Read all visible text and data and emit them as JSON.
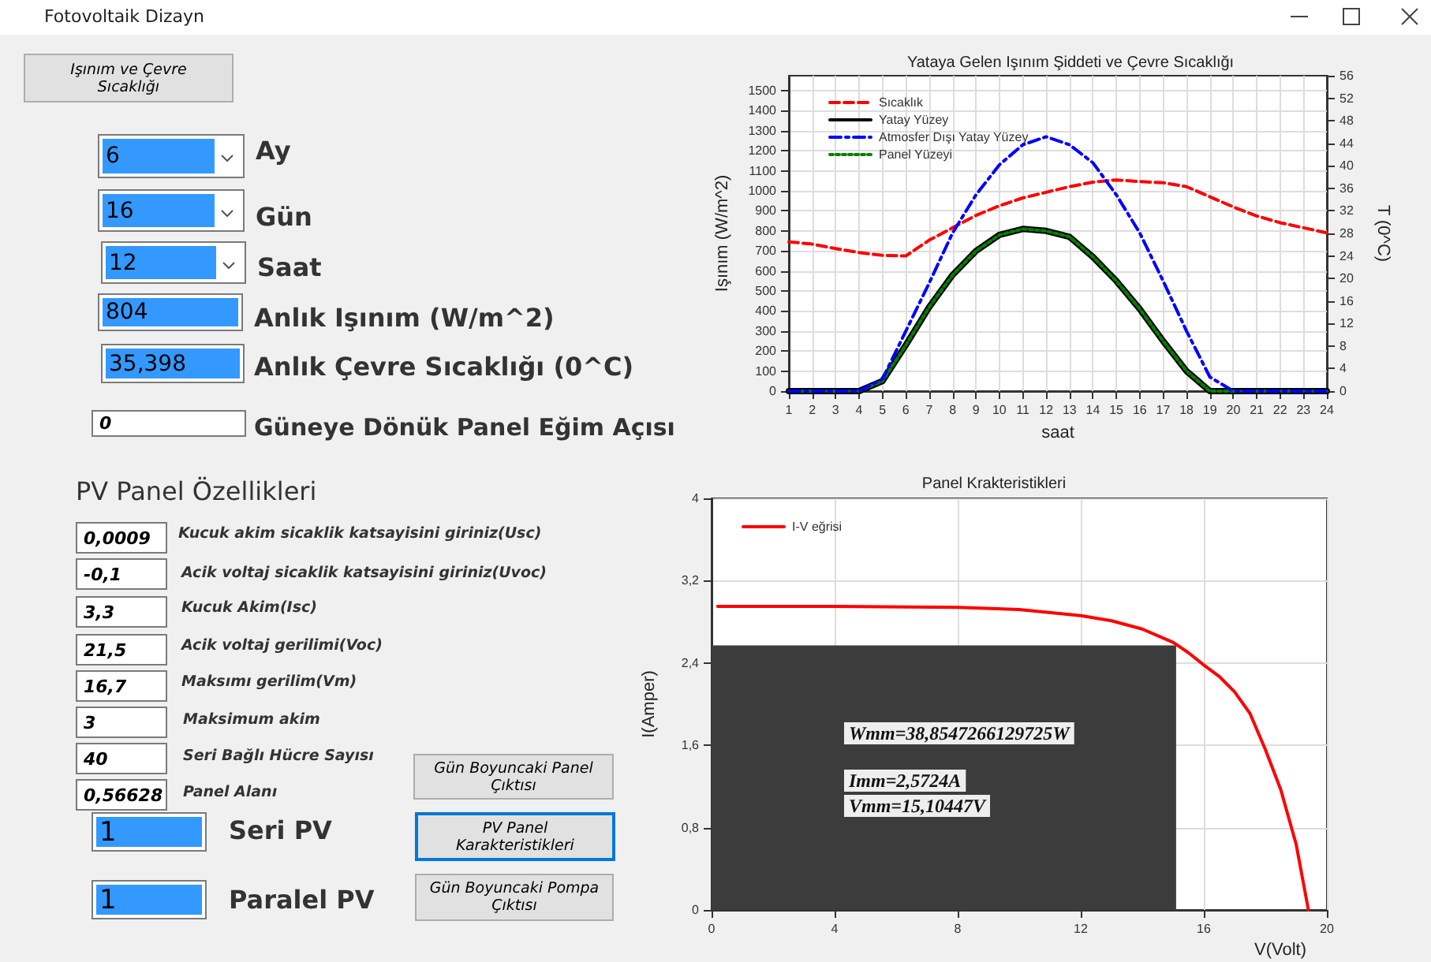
{
  "chart_data": [
    {
      "type": "other",
      "title": "Fotovoltaik Dizayn",
      "annotations": [
        "Işınım ve Çevre Sıcaklığı",
        "6",
        "Ay",
        "16",
        "Gün",
        "12",
        "Saat",
        "804",
        "Anlık Işınım (W/m^2)",
        "35,398",
        "Anlık Çevre Sıcaklığı (0^C)",
        "0",
        "Güneye Dönük Panel Eğim Açısı",
        "PV Panel Özellikleri",
        "0,0009",
        "Kucuk akim sicaklik katsayisini giriniz(Usc)",
        "-0,1",
        "Acik voltaj sicaklik katsayisini giriniz(Uvoc)",
        "3,3",
        "Kucuk Akim(Isc)",
        "21,5",
        "Acik voltaj gerilimi(Voc)",
        "16,7",
        "Maksımı gerilim(Vm)",
        "3",
        "Maksimum akim",
        "40",
        "Seri Bağlı Hücre Sayısı",
        "0,56628",
        "Panel Alanı",
        "1",
        "Seri PV",
        "1",
        "Paralel PV",
        "Gün Boyuncaki Panel Çıktısı",
        "PV Panel Karakteristikleri",
        "Gün Boyuncaki Pompa Çıktısı"
      ]
    },
    {
      "type": "line",
      "title": "Yataya Gelen Işınım Şiddeti ve Çevre Sıcaklığı",
      "xlabel": "saat",
      "ylabel": "Işınım (W/m^2)",
      "y2label": "T (0^C)",
      "x": [
        1,
        2,
        3,
        4,
        5,
        6,
        7,
        8,
        9,
        10,
        11,
        12,
        13,
        14,
        15,
        16,
        17,
        18,
        19,
        20,
        21,
        22,
        23,
        24
      ],
      "xlim": [
        1,
        24
      ],
      "xticks": [
        1,
        2,
        3,
        4,
        5,
        6,
        7,
        8,
        9,
        10,
        11,
        12,
        13,
        14,
        15,
        16,
        17,
        18,
        19,
        20,
        21,
        22,
        23,
        24
      ],
      "ylim": [
        0,
        1575
      ],
      "yticks": [
        0,
        100,
        200,
        300,
        400,
        500,
        600,
        700,
        800,
        900,
        1000,
        1100,
        1200,
        1300,
        1400,
        1500
      ],
      "y2lim": [
        0,
        56
      ],
      "y2ticks": [
        0,
        4,
        8,
        12,
        16,
        20,
        24,
        28,
        32,
        36,
        40,
        44,
        48,
        52,
        56
      ],
      "grid": true,
      "legend": "top left",
      "marker": "none",
      "series": [
        {
          "name": "Sıcaklık",
          "color": "#ff0000",
          "line_style": "dashed",
          "axis": "y2",
          "values": [
            26.5,
            26.1,
            25.3,
            24.6,
            24.1,
            24.0,
            26.8,
            29.0,
            31.2,
            32.9,
            34.3,
            35.3,
            36.3,
            37.1,
            37.5,
            37.2,
            37.0,
            36.3,
            34.5,
            32.7,
            31.1,
            29.9,
            29.0,
            28.1
          ]
        },
        {
          "name": "Yatay Yüzey",
          "color": "#000000",
          "line_style": "solid",
          "values": [
            0,
            0,
            0,
            0,
            50,
            230,
            420,
            580,
            700,
            780,
            810,
            800,
            770,
            670,
            550,
            410,
            250,
            100,
            0,
            0,
            0,
            0,
            0,
            0
          ]
        },
        {
          "name": "Atmosfer Dışı Yatay Yüzey",
          "color": "#0000ff",
          "line_style": "dashdot",
          "values": [
            0,
            0,
            0,
            0,
            60,
            300,
            540,
            790,
            980,
            1130,
            1230,
            1270,
            1230,
            1140,
            980,
            790,
            550,
            300,
            70,
            0,
            0,
            0,
            0,
            0
          ]
        },
        {
          "name": "Panel Yüzeyi",
          "color": "#008000",
          "line_style": "dotted",
          "values": [
            0,
            0,
            0,
            0,
            50,
            230,
            420,
            580,
            700,
            780,
            810,
            800,
            770,
            670,
            550,
            410,
            250,
            100,
            0,
            0,
            0,
            0,
            0,
            0
          ]
        }
      ]
    },
    {
      "type": "line",
      "title": "Panel Krakteristikleri",
      "xlabel": "V(Volt)",
      "ylabel": "I(Amper)",
      "xlim": [
        0,
        20
      ],
      "xticks": [
        0,
        4,
        8,
        12,
        16,
        20
      ],
      "ylim": [
        0,
        4
      ],
      "yticks": [
        0,
        {
          "value": 0.8,
          "label": "0,8"
        },
        {
          "value": 1.6,
          "label": "1,6"
        },
        {
          "value": 2.4,
          "label": "2,4"
        },
        {
          "value": 3.2,
          "label": "3,2"
        },
        4
      ],
      "grid": true,
      "legend": "top left",
      "marker": "none",
      "annotations": [
        "Wmm=38,8547266129725W",
        "Imm=2,5724A",
        "Vmm=15,10447V"
      ],
      "series": [
        {
          "type": "area",
          "color": "#3c3c3c",
          "x": [
            0,
            15.1
          ],
          "values": [
            2.57,
            2.57
          ]
        },
        {
          "name": "I-V eğrisi",
          "color": "#ff0000",
          "line_style": "solid",
          "x": [
            0.2,
            4,
            8,
            10,
            12,
            13,
            14,
            15,
            15.5,
            16,
            16.5,
            17,
            17.5,
            18,
            18.5,
            19,
            19.4
          ],
          "values": [
            2.95,
            2.95,
            2.94,
            2.92,
            2.86,
            2.81,
            2.73,
            2.6,
            2.5,
            2.38,
            2.27,
            2.12,
            1.91,
            1.56,
            1.17,
            0.64,
            0
          ]
        }
      ]
    }
  ]
}
